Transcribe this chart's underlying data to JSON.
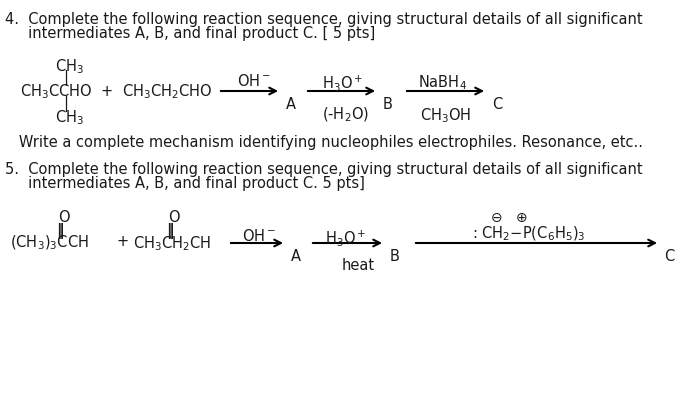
{
  "background_color": "#ffffff",
  "text_color": "#1a1a1a",
  "q4_header_line1": "4.  Complete the following reaction sequence, giving structural details of all significant",
  "q4_header_line2": "     intermediates A, B, and final product C. [ 5 pts]",
  "q4_note": "   Write a complete mechanism identifying nucleophiles electrophiles. Resonance, etc..",
  "q5_header_line1": "5.  Complete the following reaction sequence, giving structural details of all significant",
  "q5_header_line2": "     intermediates A, B, and final product C. 5 pts]",
  "fontsize": 10.5,
  "small_fontsize": 9.5
}
